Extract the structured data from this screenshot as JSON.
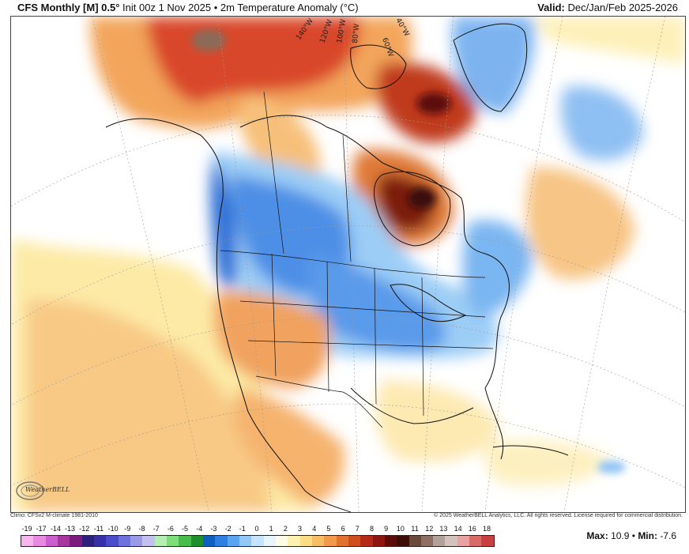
{
  "header": {
    "product": "CFS Monthly [M] 0.5°",
    "init": "Init 00z 1 Nov 2025",
    "separator": "•",
    "field": "2m Temperature Anomaly (°C)",
    "valid_label": "Valid:",
    "valid_value": "Dec/Jan/Feb 2025-2026"
  },
  "map": {
    "longitude_labels": [
      "140°W",
      "120°W",
      "100°W",
      "80°W",
      "60°W",
      "40°W"
    ],
    "anomaly_regions": [
      {
        "name": "alaska-yukon-warm",
        "anomaly_c": 8
      },
      {
        "name": "hudson-bay-warm",
        "anomaly_c": 9
      },
      {
        "name": "baffin-warm",
        "anomaly_c": 8
      },
      {
        "name": "pacific-northwest-cold",
        "anomaly_c": -3
      },
      {
        "name": "northern-plains-cold",
        "anomaly_c": -3
      },
      {
        "name": "great-lakes-cold",
        "anomaly_c": -2
      },
      {
        "name": "southwest-warm",
        "anomaly_c": 3
      },
      {
        "name": "southeast-neutral",
        "anomaly_c": 0
      },
      {
        "name": "mexico-warm",
        "anomaly_c": 3
      },
      {
        "name": "greenland-cold",
        "anomaly_c": -2
      },
      {
        "name": "north-atlantic-warm",
        "anomaly_c": 2
      }
    ]
  },
  "footer": {
    "climo": "Climo: CFSv2 M-climate 1981-2010",
    "copyright": "© 2025 WeatherBELL Analytics, LLC. All rights reserved. License required for commercial distribution."
  },
  "logo": {
    "text": "WeatherBELL"
  },
  "colorbar": {
    "ticks": [
      "-19",
      "-17",
      "-14",
      "-13",
      "-12",
      "-11",
      "-10",
      "-9",
      "-8",
      "-7",
      "-6",
      "-5",
      "-4",
      "-3",
      "-2",
      "-1",
      "0",
      "1",
      "2",
      "3",
      "4",
      "5",
      "6",
      "7",
      "8",
      "9",
      "10",
      "11",
      "12",
      "13",
      "14",
      "16",
      "18"
    ],
    "colors": [
      "#f7b7ee",
      "#e88be0",
      "#cc5fcd",
      "#a8369f",
      "#7b1b7e",
      "#2d1f7a",
      "#3730a8",
      "#4a4ccc",
      "#6f72dd",
      "#9a9ae6",
      "#c5c1ee",
      "#b4efb4",
      "#7fdc7a",
      "#48bd4b",
      "#1f8f2e",
      "#0e5fc0",
      "#2e7fe0",
      "#5aa4f0",
      "#92c8f8",
      "#c6e4fb",
      "#e8f5fd",
      "#fffbe6",
      "#fff2b0",
      "#fddc86",
      "#f9bd66",
      "#f19a4e",
      "#e2722f",
      "#cf4d1f",
      "#b52a17",
      "#8e1610",
      "#5d0c0a",
      "#3b0d07",
      "#6a4a3a",
      "#8d7063",
      "#b3a098",
      "#d4c2bd",
      "#e8a2a2",
      "#d96a6a",
      "#c94040"
    ]
  },
  "summary": {
    "max_label": "Max:",
    "max_value": "10.9",
    "sep": "•",
    "min_label": "Min:",
    "min_value": "-7.6"
  }
}
